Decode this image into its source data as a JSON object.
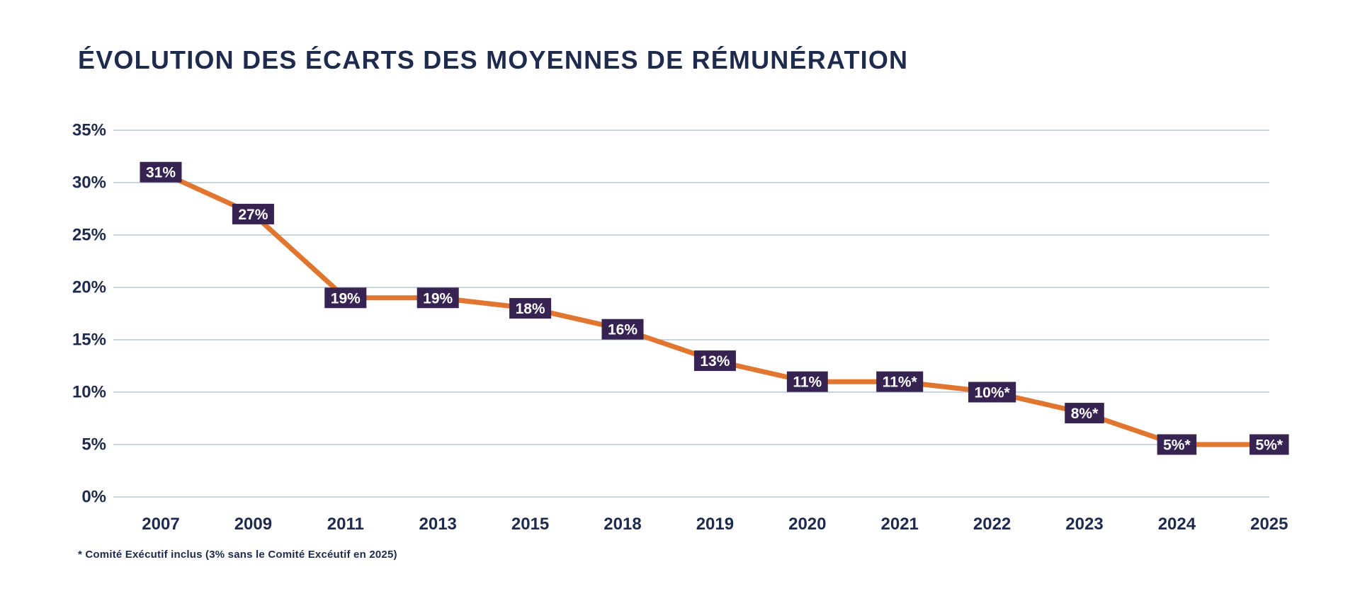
{
  "title": "ÉVOLUTION DES ÉCARTS DES MOYENNES DE RÉMUNÉRATION",
  "footnote": "* Comité Exécutif inclus (3% sans le Comité Excéutif en 2025)",
  "colors": {
    "background": "#FFFFFF",
    "title_text": "#1E2B4D",
    "axis_text": "#1E2B4D",
    "gridline": "#C9D4E2",
    "line": "#E0762F",
    "label_box": "#372352",
    "label_text": "#FFFFFF"
  },
  "chart_data": {
    "type": "line",
    "title": "ÉVOLUTION DES ÉCARTS DES MOYENNES DE RÉMUNÉRATION",
    "categories": [
      "2007",
      "2009",
      "2011",
      "2013",
      "2015",
      "2018",
      "2019",
      "2020",
      "2021",
      "2022",
      "2023",
      "2024",
      "2025"
    ],
    "values": [
      31,
      27,
      19,
      19,
      18,
      16,
      13,
      11,
      11,
      10,
      8,
      5,
      5
    ],
    "point_labels": [
      "31%",
      "27%",
      "19%",
      "19%",
      "18%",
      "16%",
      "13%",
      "11%",
      "11%*",
      "10%*",
      "8%*",
      "5%*",
      "5%*"
    ],
    "y_tick_labels": [
      "0%",
      "5%",
      "10%",
      "15%",
      "20%",
      "25%",
      "30%",
      "35%"
    ],
    "ylim": [
      0,
      35
    ],
    "y_tick_step": 5,
    "xlabel": "",
    "ylabel": "",
    "grid": true,
    "legend": "none",
    "annotation": "* Comité Exécutif inclus (3% sans le Comité Excéutif en 2025)"
  }
}
